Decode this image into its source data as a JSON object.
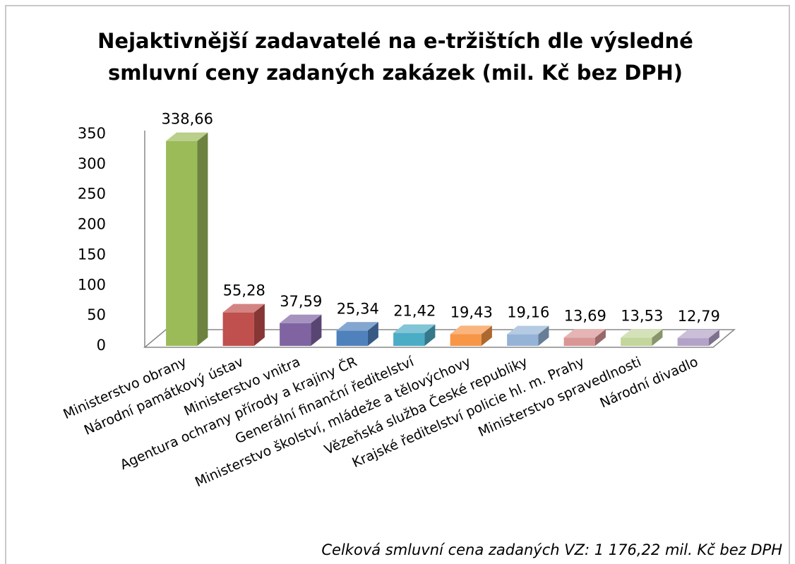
{
  "chart_data": {
    "type": "bar3d",
    "title": [
      "Nejaktivnější zadavatelé na e-tržištích dle výsledné",
      "smluvní ceny zadaných zakázek (mil. Kč bez DPH)"
    ],
    "categories": [
      "Ministerstvo obrany",
      "Národní památkový ústav",
      "Ministerstvo vnitra",
      "Agentura ochrany přírody a krajiny ČR",
      "Generální finanční ředitelství",
      "Ministerstvo školství, mládeže a tělovýchovy",
      "Vězeňská služba České republiky",
      "Krajské ředitelství policie hl. m. Prahy",
      "Ministerstvo spravedlnosti",
      "Národní divadlo"
    ],
    "values": [
      338.66,
      55.28,
      37.59,
      25.34,
      21.42,
      19.43,
      19.16,
      13.69,
      13.53,
      12.79
    ],
    "value_labels": [
      "338,66",
      "55,28",
      "37,59",
      "25,34",
      "21,42",
      "19,43",
      "19,16",
      "13,69",
      "13,53",
      "12,79"
    ],
    "colors": [
      "#9bbb59",
      "#c0504d",
      "#8064a2",
      "#4f81bd",
      "#4bacc6",
      "#f79646",
      "#95b3d7",
      "#d99694",
      "#c3d69b",
      "#b3a2c7"
    ],
    "ylim": [
      0,
      350
    ],
    "yticks": [
      0,
      50,
      100,
      150,
      200,
      250,
      300,
      350
    ],
    "annotation": "Celková smluvní cena zadaných VZ: 1 176,22 mil. Kč bez DPH"
  }
}
